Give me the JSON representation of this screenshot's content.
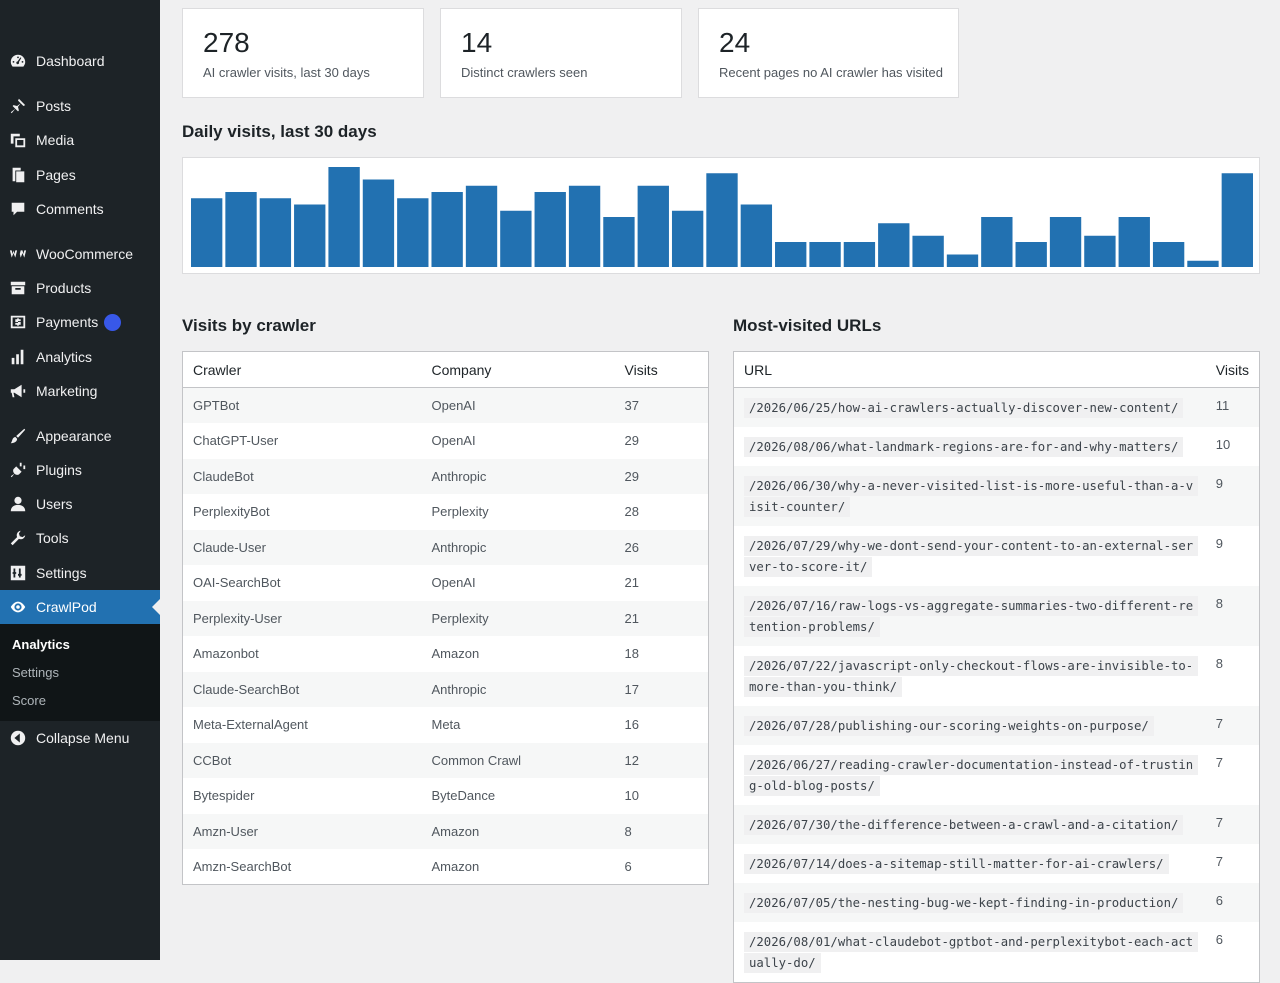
{
  "sidebar": {
    "items": [
      {
        "label": "Dashboard",
        "icon": "dashboard-icon"
      },
      {
        "label": "Posts",
        "icon": "pin-icon"
      },
      {
        "label": "Media",
        "icon": "media-icon"
      },
      {
        "label": "Pages",
        "icon": "pages-icon"
      },
      {
        "label": "Comments",
        "icon": "comment-icon"
      },
      {
        "label": "WooCommerce",
        "icon": "woocommerce-icon"
      },
      {
        "label": "Products",
        "icon": "archive-icon"
      },
      {
        "label": "Payments",
        "icon": "payments-icon"
      },
      {
        "label": "Analytics",
        "icon": "bar-chart-icon"
      },
      {
        "label": "Marketing",
        "icon": "megaphone-icon"
      },
      {
        "label": "Appearance",
        "icon": "brush-icon"
      },
      {
        "label": "Plugins",
        "icon": "plugin-icon"
      },
      {
        "label": "Users",
        "icon": "user-icon"
      },
      {
        "label": "Tools",
        "icon": "wrench-icon"
      },
      {
        "label": "Settings",
        "icon": "sliders-icon"
      },
      {
        "label": "CrawlPod",
        "icon": "eye-icon"
      }
    ],
    "submenu": [
      "Analytics",
      "Settings",
      "Score"
    ],
    "collapse_label": "Collapse Menu"
  },
  "stats": [
    {
      "value": "278",
      "label": "AI crawler visits, last 30 days"
    },
    {
      "value": "14",
      "label": "Distinct crawlers seen"
    },
    {
      "value": "24",
      "label": "Recent pages no AI crawler has visited"
    }
  ],
  "daily_title": "Daily visits, last 30 days",
  "chart_data": {
    "type": "bar",
    "values": [
      11,
      12,
      11,
      10,
      16,
      14,
      11,
      12,
      13,
      9,
      12,
      13,
      8,
      13,
      9,
      15,
      10,
      4,
      4,
      4,
      7,
      5,
      2,
      8,
      4,
      8,
      5,
      8,
      4,
      1,
      15
    ],
    "color": "#2271b1"
  },
  "crawler_section": {
    "title": "Visits by crawler",
    "headers": [
      "Crawler",
      "Company",
      "Visits"
    ],
    "rows": [
      [
        "GPTBot",
        "OpenAI",
        "37"
      ],
      [
        "ChatGPT-User",
        "OpenAI",
        "29"
      ],
      [
        "ClaudeBot",
        "Anthropic",
        "29"
      ],
      [
        "PerplexityBot",
        "Perplexity",
        "28"
      ],
      [
        "Claude-User",
        "Anthropic",
        "26"
      ],
      [
        "OAI-SearchBot",
        "OpenAI",
        "21"
      ],
      [
        "Perplexity-User",
        "Perplexity",
        "21"
      ],
      [
        "Amazonbot",
        "Amazon",
        "18"
      ],
      [
        "Claude-SearchBot",
        "Anthropic",
        "17"
      ],
      [
        "Meta-ExternalAgent",
        "Meta",
        "16"
      ],
      [
        "CCBot",
        "Common Crawl",
        "12"
      ],
      [
        "Bytespider",
        "ByteDance",
        "10"
      ],
      [
        "Amzn-User",
        "Amazon",
        "8"
      ],
      [
        "Amzn-SearchBot",
        "Amazon",
        "6"
      ]
    ]
  },
  "url_section": {
    "title": "Most-visited URLs",
    "headers": [
      "URL",
      "Visits"
    ],
    "rows": [
      [
        "/2026/06/25/how-ai-crawlers-actually-discover-new-content/",
        "11"
      ],
      [
        "/2026/08/06/what-landmark-regions-are-for-and-why-matters/",
        "10"
      ],
      [
        "/2026/06/30/why-a-never-visited-list-is-more-useful-than-a-visit-counter/",
        "9"
      ],
      [
        "/2026/07/29/why-we-dont-send-your-content-to-an-external-server-to-score-it/",
        "9"
      ],
      [
        "/2026/07/16/raw-logs-vs-aggregate-summaries-two-different-retention-problems/",
        "8"
      ],
      [
        "/2026/07/22/javascript-only-checkout-flows-are-invisible-to-more-than-you-think/",
        "8"
      ],
      [
        "/2026/07/28/publishing-our-scoring-weights-on-purpose/",
        "7"
      ],
      [
        "/2026/06/27/reading-crawler-documentation-instead-of-trusting-old-blog-posts/",
        "7"
      ],
      [
        "/2026/07/30/the-difference-between-a-crawl-and-a-citation/",
        "7"
      ],
      [
        "/2026/07/14/does-a-sitemap-still-matter-for-ai-crawlers/",
        "7"
      ],
      [
        "/2026/07/05/the-nesting-bug-we-kept-finding-in-production/",
        "6"
      ],
      [
        "/2026/08/01/what-claudebot-gptbot-and-perplexitybot-each-actually-do/",
        "6"
      ]
    ]
  }
}
